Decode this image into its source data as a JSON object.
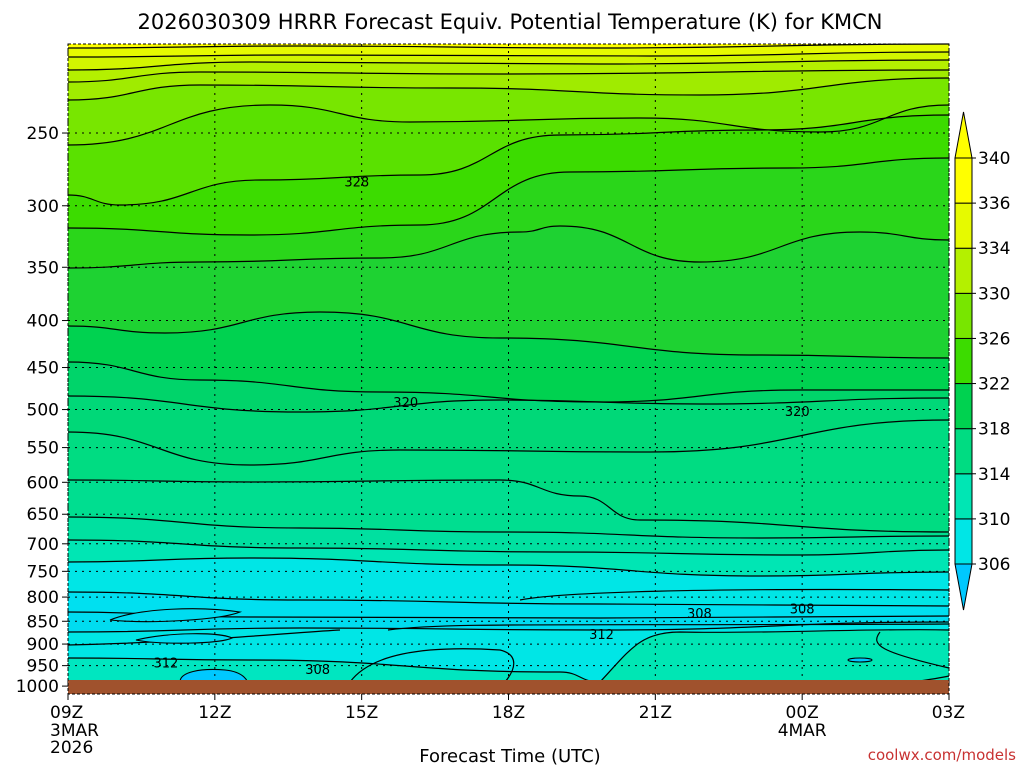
{
  "chart_data": {
    "type": "contour",
    "title": "2026030309 HRRR Forecast Equiv. Potential Temperature (K) for KMCN",
    "xlabel": "Forecast Time (UTC)",
    "ylabel": "",
    "x_ticks": [
      {
        "label": "09Z",
        "sub": [
          "3MAR",
          "2026"
        ],
        "hour": 0
      },
      {
        "label": "12Z",
        "sub": [],
        "hour": 3
      },
      {
        "label": "15Z",
        "sub": [],
        "hour": 6
      },
      {
        "label": "18Z",
        "sub": [],
        "hour": 9
      },
      {
        "label": "21Z",
        "sub": [],
        "hour": 12
      },
      {
        "label": "00Z",
        "sub": [
          "4MAR"
        ],
        "hour": 15
      },
      {
        "label": "03Z",
        "sub": [],
        "hour": 18
      }
    ],
    "xlim": [
      0,
      18
    ],
    "y_ticks": [
      250,
      300,
      350,
      400,
      450,
      500,
      550,
      600,
      650,
      700,
      750,
      800,
      850,
      900,
      950,
      1000
    ],
    "ylim": [
      1020,
      200
    ],
    "y_scale": "log",
    "colorbar": {
      "levels": [
        306,
        310,
        314,
        318,
        322,
        326,
        330,
        334,
        336,
        340
      ],
      "colors": [
        "#00c8ff",
        "#00e6e6",
        "#00e6b4",
        "#00dc82",
        "#00d250",
        "#3cdc00",
        "#78e600",
        "#b4f000",
        "#e6fa00",
        "#ffff00"
      ],
      "extend": "both"
    },
    "contour_labels": [
      {
        "value": "328",
        "hour": 5.9,
        "p": 283
      },
      {
        "value": "320",
        "hour": 6.9,
        "p": 492
      },
      {
        "value": "320",
        "hour": 14.9,
        "p": 503
      },
      {
        "value": "308",
        "hour": 12.9,
        "p": 835
      },
      {
        "value": "308",
        "hour": 15.0,
        "p": 825
      },
      {
        "value": "312",
        "hour": 10.9,
        "p": 880
      },
      {
        "value": "312",
        "hour": 2.0,
        "p": 945
      },
      {
        "value": "308",
        "hour": 5.1,
        "p": 960
      }
    ],
    "ground_color": "#a0522d",
    "grid": true
  },
  "watermark": "coolwx.com/models"
}
